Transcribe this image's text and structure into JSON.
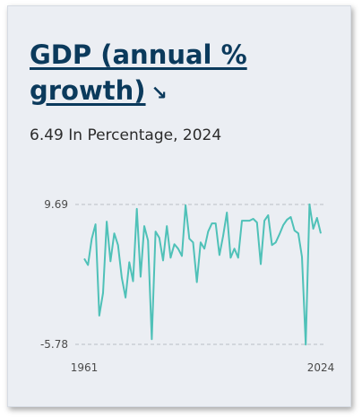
{
  "card": {
    "title": "GDP (annual %",
    "title_line2": "growth)",
    "title_icon": "arrow-down-right-icon",
    "subtitle": "6.49 In Percentage, 2024"
  },
  "chart_data": {
    "type": "line",
    "title": "",
    "xlabel": "",
    "ylabel": "",
    "x_tick_labels": [
      "1961",
      "2024"
    ],
    "y_tick_labels": [
      "9.69",
      "-5.78"
    ],
    "ylim": [
      -5.78,
      9.69
    ],
    "xlim": [
      1961,
      2024
    ],
    "grid": "dashed reference lines at max and min",
    "line_color": "#4fc1b8",
    "x": [
      1961,
      1962,
      1963,
      1964,
      1965,
      1966,
      1967,
      1968,
      1969,
      1970,
      1971,
      1972,
      1973,
      1974,
      1975,
      1976,
      1977,
      1978,
      1979,
      1980,
      1981,
      1982,
      1983,
      1984,
      1985,
      1986,
      1987,
      1988,
      1989,
      1990,
      1991,
      1992,
      1993,
      1994,
      1995,
      1996,
      1997,
      1998,
      1999,
      2000,
      2001,
      2002,
      2003,
      2004,
      2005,
      2006,
      2007,
      2008,
      2009,
      2010,
      2011,
      2012,
      2013,
      2014,
      2015,
      2016,
      2017,
      2018,
      2019,
      2020,
      2021,
      2022,
      2023,
      2024
    ],
    "values": [
      3.7,
      3.0,
      5.9,
      7.5,
      -2.6,
      -0.1,
      7.8,
      3.4,
      6.5,
      5.2,
      1.6,
      -0.6,
      3.3,
      1.2,
      9.2,
      1.7,
      7.3,
      5.7,
      -5.2,
      6.7,
      6.0,
      3.5,
      7.3,
      3.8,
      5.3,
      4.8,
      4.0,
      9.6,
      5.9,
      5.5,
      1.1,
      5.5,
      4.8,
      6.7,
      7.6,
      7.6,
      4.1,
      6.2,
      8.8,
      3.8,
      4.8,
      3.8,
      7.9,
      7.9,
      7.9,
      8.1,
      7.7,
      3.1,
      7.9,
      8.5,
      5.2,
      5.5,
      6.4,
      7.4,
      8.0,
      8.3,
      6.8,
      6.5,
      3.9,
      -5.8,
      9.7,
      7.0,
      8.2,
      6.49
    ]
  }
}
